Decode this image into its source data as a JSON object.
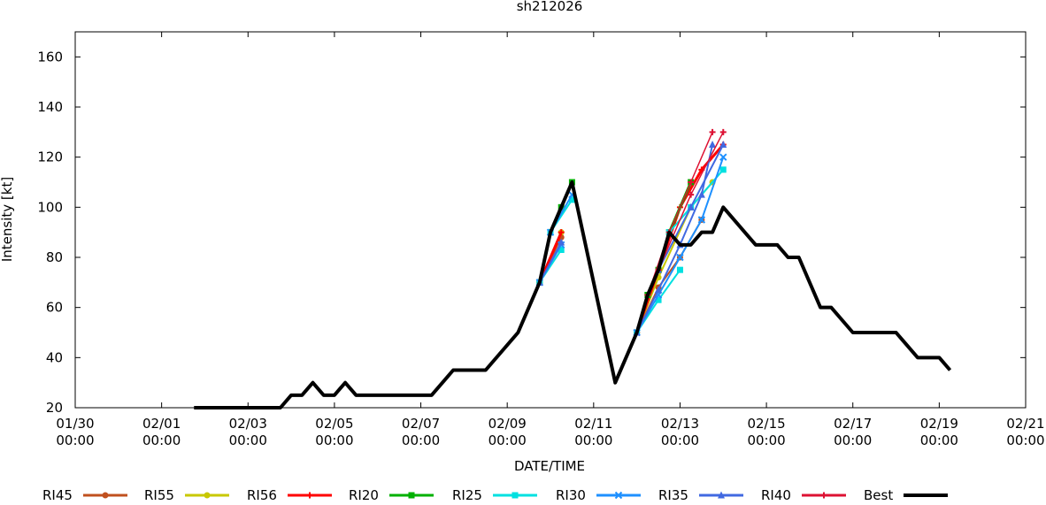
{
  "chart_data": {
    "type": "line",
    "title": "sh212026",
    "xlabel": "DATE/TIME",
    "ylabel": "Intensity [kt]",
    "xlim": [
      "01/30 00:00",
      "02/21 00:00"
    ],
    "ylim": [
      20,
      170
    ],
    "x_ticks": [
      {
        "date": "01/30",
        "time": "00:00"
      },
      {
        "date": "02/01",
        "time": "00:00"
      },
      {
        "date": "02/03",
        "time": "00:00"
      },
      {
        "date": "02/05",
        "time": "00:00"
      },
      {
        "date": "02/07",
        "time": "00:00"
      },
      {
        "date": "02/09",
        "time": "00:00"
      },
      {
        "date": "02/11",
        "time": "00:00"
      },
      {
        "date": "02/13",
        "time": "00:00"
      },
      {
        "date": "02/15",
        "time": "00:00"
      },
      {
        "date": "02/17",
        "time": "00:00"
      },
      {
        "date": "02/19",
        "time": "00:00"
      },
      {
        "date": "02/21",
        "time": "00:00"
      }
    ],
    "y_ticks": [
      "20",
      "40",
      "60",
      "80",
      "100",
      "120",
      "140",
      "160"
    ],
    "grid": false,
    "legend_position": "bottom",
    "series": [
      {
        "name": "Best",
        "color": "#000000",
        "marker": "none",
        "width": 4,
        "points": [
          [
            "02/01 18:00",
            20
          ],
          [
            "02/03 18:00",
            20
          ],
          [
            "02/04 00:00",
            25
          ],
          [
            "02/04 06:00",
            25
          ],
          [
            "02/04 12:00",
            30
          ],
          [
            "02/04 18:00",
            25
          ],
          [
            "02/05 00:00",
            25
          ],
          [
            "02/05 06:00",
            30
          ],
          [
            "02/05 12:00",
            25
          ],
          [
            "02/06 00:00",
            25
          ],
          [
            "02/07 06:00",
            25
          ],
          [
            "02/07 18:00",
            35
          ],
          [
            "02/08 12:00",
            35
          ],
          [
            "02/09 06:00",
            50
          ],
          [
            "02/09 18:00",
            70
          ],
          [
            "02/10 00:00",
            90
          ],
          [
            "02/10 12:00",
            110
          ],
          [
            "02/11 12:00",
            30
          ],
          [
            "02/12 00:00",
            50
          ],
          [
            "02/12 06:00",
            65
          ],
          [
            "02/12 12:00",
            75
          ],
          [
            "02/12 18:00",
            90
          ],
          [
            "02/13 00:00",
            85
          ],
          [
            "02/13 06:00",
            85
          ],
          [
            "02/13 12:00",
            90
          ],
          [
            "02/13 18:00",
            90
          ],
          [
            "02/14 00:00",
            100
          ],
          [
            "02/14 12:00",
            90
          ],
          [
            "02/14 18:00",
            85
          ],
          [
            "02/15 06:00",
            85
          ],
          [
            "02/15 12:00",
            80
          ],
          [
            "02/15 18:00",
            80
          ],
          [
            "02/16 06:00",
            60
          ],
          [
            "02/16 12:00",
            60
          ],
          [
            "02/17 00:00",
            50
          ],
          [
            "02/18 00:00",
            50
          ],
          [
            "02/18 12:00",
            40
          ],
          [
            "02/19 00:00",
            40
          ],
          [
            "02/19 06:00",
            35
          ]
        ]
      },
      {
        "name": "RI45",
        "color": "#c0501e",
        "marker": "circle",
        "width": 2,
        "segments": [
          [
            [
              "02/09 18:00",
              70
            ],
            [
              "02/10 06:00",
              88
            ]
          ],
          [
            [
              "02/12 00:00",
              50
            ],
            [
              "02/12 12:00",
              68
            ],
            [
              "02/13 00:00",
              80
            ],
            [
              "02/13 12:00",
              95
            ]
          ]
        ]
      },
      {
        "name": "RI55",
        "color": "#c8c800",
        "marker": "circle",
        "width": 2,
        "segments": [
          [
            [
              "02/09 18:00",
              70
            ],
            [
              "02/10 06:00",
              90
            ]
          ],
          [
            [
              "02/12 00:00",
              50
            ],
            [
              "02/12 12:00",
              72
            ],
            [
              "02/13 06:00",
              100
            ],
            [
              "02/13 18:00",
              110
            ]
          ]
        ]
      },
      {
        "name": "RI56",
        "color": "#ff0000",
        "marker": "plus",
        "width": 3,
        "segments": [
          [
            [
              "02/09 18:00",
              70
            ],
            [
              "02/10 06:00",
              90
            ]
          ],
          [
            [
              "02/12 00:00",
              50
            ],
            [
              "02/12 12:00",
              75
            ],
            [
              "02/13 00:00",
              100
            ],
            [
              "02/13 12:00",
              115
            ],
            [
              "02/14 00:00",
              125
            ]
          ]
        ]
      },
      {
        "name": "RI20",
        "color": "#00b000",
        "marker": "square",
        "width": 3,
        "segments": [
          [
            [
              "02/09 18:00",
              70
            ],
            [
              "02/10 00:00",
              90
            ],
            [
              "02/10 06:00",
              100
            ],
            [
              "02/10 12:00",
              110
            ]
          ],
          [
            [
              "02/12 06:00",
              65
            ],
            [
              "02/12 12:00",
              75
            ],
            [
              "02/12 18:00",
              90
            ],
            [
              "02/13 06:00",
              110
            ]
          ]
        ]
      },
      {
        "name": "RI25",
        "color": "#00e0e0",
        "marker": "square",
        "width": 2,
        "segments": [
          [
            [
              "02/09 18:00",
              70
            ],
            [
              "02/10 06:00",
              83
            ]
          ],
          [
            [
              "02/10 00:00",
              90
            ],
            [
              "02/10 12:00",
              103
            ]
          ],
          [
            [
              "02/12 00:00",
              50
            ],
            [
              "02/12 12:00",
              63
            ],
            [
              "02/13 00:00",
              75
            ]
          ],
          [
            [
              "02/12 18:00",
              90
            ],
            [
              "02/13 06:00",
              100
            ],
            [
              "02/14 00:00",
              115
            ]
          ]
        ]
      },
      {
        "name": "RI30",
        "color": "#1e90ff",
        "marker": "cross",
        "width": 2,
        "segments": [
          [
            [
              "02/09 18:00",
              70
            ],
            [
              "02/10 06:00",
              85
            ]
          ],
          [
            [
              "02/10 00:00",
              90
            ],
            [
              "02/10 12:00",
              105
            ]
          ],
          [
            [
              "02/12 00:00",
              50
            ],
            [
              "02/12 12:00",
              65
            ],
            [
              "02/13 00:00",
              80
            ],
            [
              "02/13 12:00",
              95
            ],
            [
              "02/14 00:00",
              120
            ]
          ]
        ]
      },
      {
        "name": "RI35",
        "color": "#4169e1",
        "marker": "triangle",
        "width": 2,
        "segments": [
          [
            [
              "02/09 18:00",
              70
            ],
            [
              "02/10 06:00",
              86
            ]
          ],
          [
            [
              "02/12 00:00",
              50
            ],
            [
              "02/12 12:00",
              67
            ],
            [
              "02/13 00:00",
              85
            ],
            [
              "02/13 12:00",
              105
            ],
            [
              "02/13 18:00",
              125
            ]
          ],
          [
            [
              "02/12 12:00",
              75
            ],
            [
              "02/13 06:00",
              100
            ],
            [
              "02/14 00:00",
              125
            ]
          ]
        ]
      },
      {
        "name": "RI40",
        "color": "#dd1133",
        "marker": "plus",
        "width": 1.5,
        "segments": [
          [
            [
              "02/12 06:00",
              65
            ],
            [
              "02/12 18:00",
              90
            ],
            [
              "02/13 06:00",
              110
            ],
            [
              "02/13 18:00",
              130
            ]
          ],
          [
            [
              "02/12 12:00",
              75
            ],
            [
              "02/13 06:00",
              105
            ],
            [
              "02/14 00:00",
              130
            ]
          ]
        ]
      }
    ]
  },
  "legend": {
    "items": [
      {
        "label": "RI45",
        "color": "#c0501e",
        "marker": "circle"
      },
      {
        "label": "RI55",
        "color": "#c8c800",
        "marker": "circle"
      },
      {
        "label": "RI56",
        "color": "#ff0000",
        "marker": "plus"
      },
      {
        "label": "RI20",
        "color": "#00b000",
        "marker": "square"
      },
      {
        "label": "RI25",
        "color": "#00e0e0",
        "marker": "square"
      },
      {
        "label": "RI30",
        "color": "#1e90ff",
        "marker": "cross"
      },
      {
        "label": "RI35",
        "color": "#4169e1",
        "marker": "triangle"
      },
      {
        "label": "RI40",
        "color": "#dd1133",
        "marker": "plus"
      },
      {
        "label": "Best",
        "color": "#000000",
        "marker": "none"
      }
    ]
  }
}
